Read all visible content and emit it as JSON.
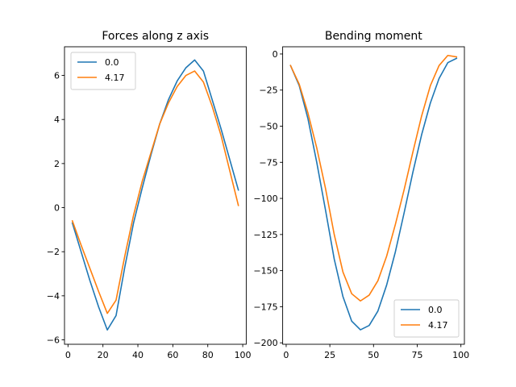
{
  "chart_data": [
    {
      "type": "line",
      "title": "Forces along z axis",
      "xlabel": "",
      "ylabel": "",
      "xlim": [
        -2,
        102
      ],
      "ylim": [
        -6.2,
        7.3
      ],
      "xticks": [
        0,
        20,
        40,
        60,
        80,
        100
      ],
      "yticks": [
        -6,
        -4,
        -2,
        0,
        2,
        4,
        6
      ],
      "legend_position": "upper-left",
      "grid": false,
      "series": [
        {
          "name": "0.0",
          "color": "#1f77b4",
          "x": [
            2.5,
            7.5,
            12.5,
            17.5,
            22.5,
            27.5,
            32.5,
            37.5,
            42.5,
            47.5,
            52.5,
            57.5,
            62.5,
            67.5,
            72.5,
            77.5,
            82.5,
            87.5,
            92.5,
            97.5
          ],
          "y": [
            -0.7,
            -2.0,
            -3.3,
            -4.5,
            -5.55,
            -4.9,
            -2.7,
            -0.7,
            0.9,
            2.4,
            3.8,
            4.9,
            5.75,
            6.35,
            6.7,
            6.2,
            4.9,
            3.6,
            2.2,
            0.8
          ]
        },
        {
          "name": "4.17",
          "color": "#ff7f0e",
          "x": [
            2.5,
            7.5,
            12.5,
            17.5,
            22.5,
            27.5,
            32.5,
            37.5,
            42.5,
            47.5,
            52.5,
            57.5,
            62.5,
            67.5,
            72.5,
            77.5,
            82.5,
            87.5,
            92.5,
            97.5
          ],
          "y": [
            -0.6,
            -1.7,
            -2.75,
            -3.8,
            -4.8,
            -4.2,
            -2.2,
            -0.35,
            1.2,
            2.5,
            3.8,
            4.75,
            5.5,
            6.0,
            6.2,
            5.7,
            4.6,
            3.3,
            1.7,
            0.1
          ]
        }
      ]
    },
    {
      "type": "line",
      "title": "Bending moment",
      "xlabel": "",
      "ylabel": "",
      "xlim": [
        -2,
        102
      ],
      "ylim": [
        -201,
        5
      ],
      "xticks": [
        0,
        25,
        50,
        75,
        100
      ],
      "yticks": [
        0,
        -25,
        -50,
        -75,
        -100,
        -125,
        -150,
        -175,
        -200
      ],
      "legend_position": "lower-right",
      "grid": false,
      "series": [
        {
          "name": "0.0",
          "color": "#1f77b4",
          "x": [
            2.5,
            7.5,
            12.5,
            17.5,
            22.5,
            27.5,
            32.5,
            37.5,
            42.5,
            47.5,
            52.5,
            57.5,
            62.5,
            67.5,
            72.5,
            77.5,
            82.5,
            87.5,
            92.5,
            97.5
          ],
          "y": [
            -8,
            -22,
            -45,
            -75,
            -108,
            -142,
            -168,
            -185,
            -191,
            -188,
            -178,
            -160,
            -137,
            -110,
            -82,
            -56,
            -34,
            -17,
            -6,
            -3
          ]
        },
        {
          "name": "4.17",
          "color": "#ff7f0e",
          "x": [
            2.5,
            7.5,
            12.5,
            17.5,
            22.5,
            27.5,
            32.5,
            37.5,
            42.5,
            47.5,
            52.5,
            57.5,
            62.5,
            67.5,
            72.5,
            77.5,
            82.5,
            87.5,
            92.5,
            97.5
          ],
          "y": [
            -8,
            -21,
            -41,
            -65,
            -93,
            -125,
            -151,
            -166,
            -171,
            -167,
            -157,
            -140,
            -118,
            -94,
            -68,
            -43,
            -22,
            -8,
            -1,
            -2
          ]
        }
      ]
    }
  ]
}
